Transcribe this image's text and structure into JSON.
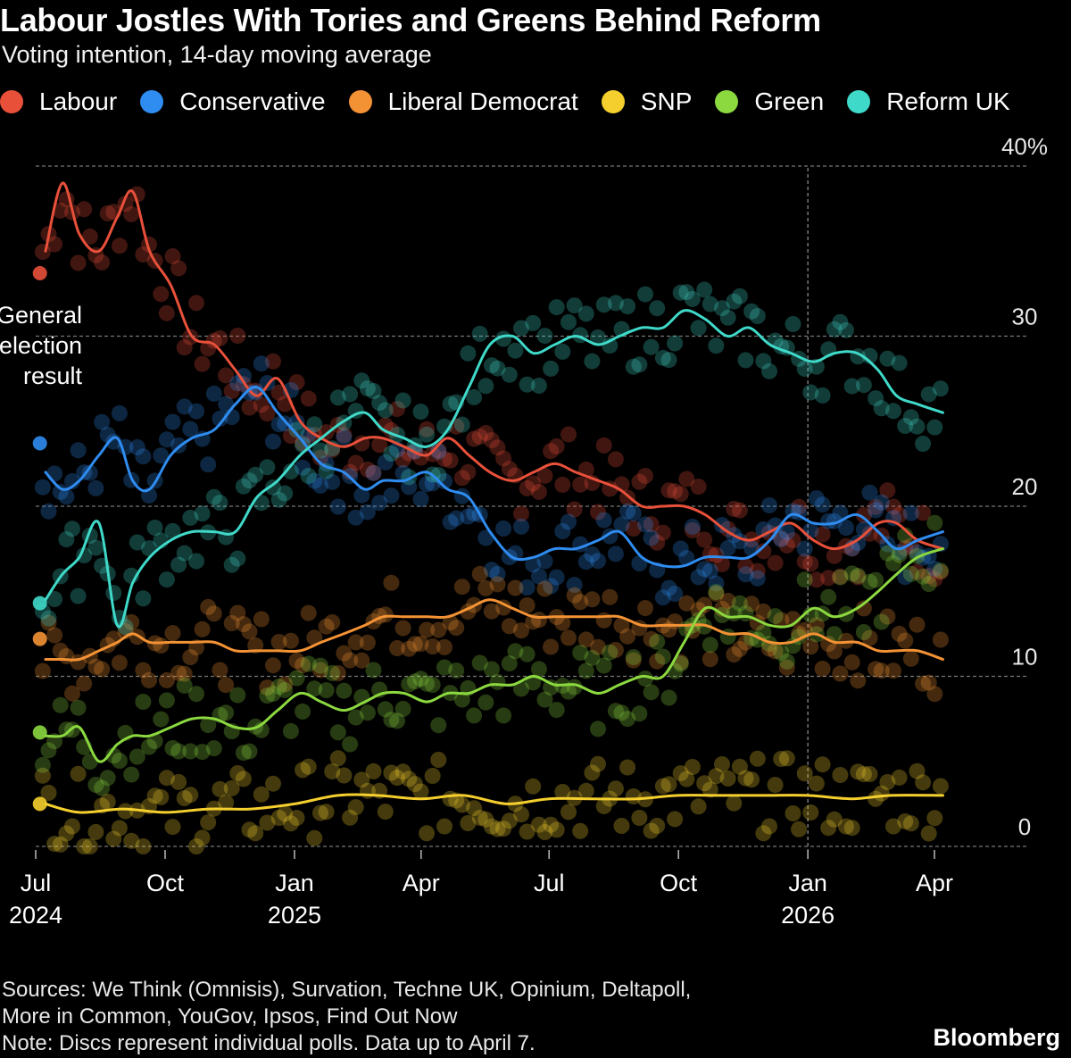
{
  "title": "Labour Jostles With Tories and Greens Behind Reform",
  "subtitle": "Voting intention, 14-day moving average",
  "legend": [
    {
      "name": "Labour",
      "color": "#e8503a"
    },
    {
      "name": "Conservative",
      "color": "#2f8cf0"
    },
    {
      "name": "Liberal Democrat",
      "color": "#f39234"
    },
    {
      "name": "SNP",
      "color": "#f5cf2e"
    },
    {
      "name": "Green",
      "color": "#8bd83f"
    },
    {
      "name": "Reform UK",
      "color": "#3fd9c9"
    }
  ],
  "annotation": {
    "line1": "General",
    "line2": "election",
    "line3": "result"
  },
  "footer": {
    "sources_line1": "Sources: We Think (Omnisis), Survation, Techne UK, Opinium, Deltapoll,",
    "sources_line2": "More in Common, YouGov, Ipsos, Find Out Now",
    "note": "Note: Discs represent individual polls. Data up to April 7."
  },
  "brand": "Bloomberg",
  "chart_data": {
    "type": "line",
    "title": "Labour Jostles With Tories and Greens Behind Reform",
    "subtitle": "Voting intention, 14-day moving average",
    "ylim": [
      0,
      40
    ],
    "yticks": [
      {
        "value": 0,
        "label": "0"
      },
      {
        "value": 10,
        "label": "10"
      },
      {
        "value": 20,
        "label": "20"
      },
      {
        "value": 30,
        "label": "30"
      },
      {
        "value": 40,
        "label": "40%"
      }
    ],
    "xlim": [
      "2024-07-04",
      "2026-04-07"
    ],
    "xticks": [
      {
        "date": "2024-07-01",
        "label": "Jul",
        "year": "2024"
      },
      {
        "date": "2024-10-01",
        "label": "Oct",
        "year": ""
      },
      {
        "date": "2025-01-01",
        "label": "Jan",
        "year": "2025"
      },
      {
        "date": "2025-04-01",
        "label": "Apr",
        "year": ""
      },
      {
        "date": "2025-07-01",
        "label": "Jul",
        "year": ""
      },
      {
        "date": "2025-10-01",
        "label": "Oct",
        "year": ""
      },
      {
        "date": "2026-01-01",
        "label": "Jan",
        "year": "2026"
      },
      {
        "date": "2026-04-01",
        "label": "Apr",
        "year": ""
      }
    ],
    "gridlines": true,
    "legend_position": "top",
    "election_marker": {
      "date": "2024-07-04",
      "values": {
        "Labour": 33.7,
        "Conservative": 23.7,
        "Liberal Democrat": 12.2,
        "SNP": 2.5,
        "Green": 6.7,
        "Reform UK": 14.3
      }
    },
    "year_marker": "2026-01-01",
    "series": [
      {
        "name": "Labour",
        "color": "#e8503a",
        "x": [
          "2024-07-08",
          "2024-07-20",
          "2024-08-01",
          "2024-08-15",
          "2024-08-28",
          "2024-09-08",
          "2024-09-20",
          "2024-10-05",
          "2024-10-20",
          "2024-11-05",
          "2024-11-20",
          "2024-12-05",
          "2024-12-20",
          "2025-01-05",
          "2025-01-20",
          "2025-02-05",
          "2025-02-20",
          "2025-03-05",
          "2025-03-20",
          "2025-04-05",
          "2025-04-20",
          "2025-05-05",
          "2025-05-20",
          "2025-06-05",
          "2025-06-20",
          "2025-07-05",
          "2025-07-20",
          "2025-08-05",
          "2025-08-20",
          "2025-09-05",
          "2025-09-20",
          "2025-10-05",
          "2025-10-20",
          "2025-11-05",
          "2025-11-20",
          "2025-12-05",
          "2025-12-20",
          "2026-01-05",
          "2026-01-20",
          "2026-02-05",
          "2026-02-20",
          "2026-03-05",
          "2026-03-20",
          "2026-04-07"
        ],
        "values": [
          35,
          39,
          36,
          35,
          37,
          38.5,
          35,
          33,
          30,
          29.5,
          28,
          26.5,
          27.5,
          25,
          24,
          23.5,
          24,
          24,
          23.5,
          23,
          24,
          23,
          22,
          21.5,
          22,
          22.5,
          22,
          21.5,
          21,
          20,
          20,
          20,
          19.5,
          18.5,
          18,
          18.5,
          19,
          18,
          17.5,
          18,
          19,
          19,
          18,
          17.5
        ]
      },
      {
        "name": "Conservative",
        "color": "#2f8cf0",
        "x": [
          "2024-07-08",
          "2024-07-20",
          "2024-08-01",
          "2024-08-15",
          "2024-08-28",
          "2024-09-08",
          "2024-09-20",
          "2024-10-05",
          "2024-10-20",
          "2024-11-05",
          "2024-11-20",
          "2024-12-05",
          "2024-12-20",
          "2025-01-05",
          "2025-01-20",
          "2025-02-05",
          "2025-02-20",
          "2025-03-05",
          "2025-03-20",
          "2025-04-05",
          "2025-04-20",
          "2025-05-05",
          "2025-05-20",
          "2025-06-05",
          "2025-06-20",
          "2025-07-05",
          "2025-07-20",
          "2025-08-05",
          "2025-08-20",
          "2025-09-05",
          "2025-09-20",
          "2025-10-05",
          "2025-10-20",
          "2025-11-05",
          "2025-11-20",
          "2025-12-05",
          "2025-12-20",
          "2026-01-05",
          "2026-01-20",
          "2026-02-05",
          "2026-02-20",
          "2026-03-05",
          "2026-03-20",
          "2026-04-07"
        ],
        "values": [
          22,
          21,
          21.5,
          23,
          24,
          21.5,
          21,
          23,
          24,
          24.5,
          26,
          27,
          25.5,
          24,
          22.5,
          22,
          21,
          21.5,
          21.5,
          22,
          21,
          20.5,
          18.5,
          17,
          17,
          17.5,
          17.5,
          18,
          18.5,
          17,
          16.5,
          16.5,
          17,
          17,
          17,
          18,
          19.5,
          19,
          19,
          19.5,
          18.5,
          17.5,
          18,
          18.5
        ]
      },
      {
        "name": "Liberal Democrat",
        "color": "#f39234",
        "x": [
          "2024-07-08",
          "2024-07-20",
          "2024-08-01",
          "2024-08-15",
          "2024-08-28",
          "2024-09-08",
          "2024-09-20",
          "2024-10-05",
          "2024-10-20",
          "2024-11-05",
          "2024-11-20",
          "2024-12-05",
          "2024-12-20",
          "2025-01-05",
          "2025-01-20",
          "2025-02-05",
          "2025-02-20",
          "2025-03-05",
          "2025-03-20",
          "2025-04-05",
          "2025-04-20",
          "2025-05-05",
          "2025-05-20",
          "2025-06-05",
          "2025-06-20",
          "2025-07-05",
          "2025-07-20",
          "2025-08-05",
          "2025-08-20",
          "2025-09-05",
          "2025-09-20",
          "2025-10-05",
          "2025-10-20",
          "2025-11-05",
          "2025-11-20",
          "2025-12-05",
          "2025-12-20",
          "2026-01-05",
          "2026-01-20",
          "2026-02-05",
          "2026-02-20",
          "2026-03-05",
          "2026-03-20",
          "2026-04-07"
        ],
        "values": [
          11,
          11,
          11,
          11.5,
          12,
          12.5,
          12,
          12,
          12,
          12,
          11.5,
          11.5,
          11.5,
          11.5,
          12,
          12.5,
          13,
          13.5,
          13.5,
          13.5,
          13.5,
          14,
          14.5,
          14,
          13.5,
          13.5,
          13.5,
          13.5,
          13.5,
          13,
          13,
          13,
          13,
          12.5,
          12.5,
          12,
          12,
          12.5,
          12,
          12,
          11.5,
          11.5,
          11.5,
          11
        ]
      },
      {
        "name": "SNP",
        "color": "#f5cf2e",
        "x": [
          "2024-07-08",
          "2024-08-01",
          "2024-09-01",
          "2024-10-01",
          "2024-11-01",
          "2024-12-01",
          "2025-01-01",
          "2025-02-01",
          "2025-03-01",
          "2025-04-01",
          "2025-05-01",
          "2025-06-01",
          "2025-07-01",
          "2025-08-01",
          "2025-09-01",
          "2025-10-01",
          "2025-11-01",
          "2025-12-01",
          "2026-01-01",
          "2026-02-01",
          "2026-03-01",
          "2026-04-07"
        ],
        "values": [
          2.5,
          2,
          2.2,
          2,
          2.2,
          2.2,
          2.5,
          3,
          3,
          2.8,
          3,
          2.5,
          2.8,
          2.8,
          2.8,
          3,
          3,
          3,
          3,
          2.8,
          3,
          3
        ]
      },
      {
        "name": "Green",
        "color": "#8bd83f",
        "x": [
          "2024-07-08",
          "2024-07-20",
          "2024-08-01",
          "2024-08-15",
          "2024-08-28",
          "2024-09-08",
          "2024-09-20",
          "2024-10-05",
          "2024-10-20",
          "2024-11-05",
          "2024-11-20",
          "2024-12-05",
          "2024-12-20",
          "2025-01-05",
          "2025-01-20",
          "2025-02-05",
          "2025-02-20",
          "2025-03-05",
          "2025-03-20",
          "2025-04-05",
          "2025-04-20",
          "2025-05-05",
          "2025-05-20",
          "2025-06-05",
          "2025-06-20",
          "2025-07-05",
          "2025-07-20",
          "2025-08-05",
          "2025-08-20",
          "2025-09-05",
          "2025-09-20",
          "2025-10-05",
          "2025-10-20",
          "2025-11-05",
          "2025-11-20",
          "2025-12-05",
          "2025-12-20",
          "2026-01-05",
          "2026-01-20",
          "2026-02-05",
          "2026-02-20",
          "2026-03-05",
          "2026-03-20",
          "2026-04-07"
        ],
        "values": [
          6.5,
          6.5,
          7,
          5,
          6,
          6.5,
          6.5,
          7,
          7.5,
          7.5,
          7,
          7,
          8,
          9,
          8.5,
          8,
          8.5,
          9,
          9,
          8.5,
          9,
          9,
          9.5,
          9.5,
          10,
          9.5,
          9.5,
          9,
          9.5,
          10,
          10,
          12,
          14,
          13.5,
          13.5,
          13,
          13,
          14,
          13.5,
          14,
          15,
          16,
          17,
          17.5
        ]
      },
      {
        "name": "Reform UK",
        "color": "#3fd9c9",
        "x": [
          "2024-07-08",
          "2024-07-20",
          "2024-08-01",
          "2024-08-15",
          "2024-08-28",
          "2024-09-08",
          "2024-09-20",
          "2024-10-05",
          "2024-10-20",
          "2024-11-05",
          "2024-11-20",
          "2024-12-05",
          "2024-12-20",
          "2025-01-05",
          "2025-01-20",
          "2025-02-05",
          "2025-02-20",
          "2025-03-05",
          "2025-03-20",
          "2025-04-05",
          "2025-04-20",
          "2025-05-05",
          "2025-05-20",
          "2025-06-05",
          "2025-06-20",
          "2025-07-05",
          "2025-07-20",
          "2025-08-05",
          "2025-08-20",
          "2025-09-05",
          "2025-09-20",
          "2025-10-05",
          "2025-10-20",
          "2025-11-05",
          "2025-11-20",
          "2025-12-05",
          "2025-12-20",
          "2026-01-05",
          "2026-01-20",
          "2026-02-05",
          "2026-02-20",
          "2026-03-05",
          "2026-03-20",
          "2026-04-07"
        ],
        "values": [
          14.5,
          16,
          17,
          19,
          13,
          15.5,
          17,
          18,
          18.5,
          18.5,
          18.5,
          20.5,
          21.5,
          23,
          24,
          25,
          25.5,
          24.5,
          24,
          23.5,
          24.5,
          27,
          29.5,
          30,
          29,
          29.5,
          30,
          29.5,
          30,
          30.5,
          30.5,
          31.5,
          31,
          30,
          30.5,
          29.5,
          29,
          28.5,
          29,
          29,
          28,
          26.5,
          26,
          25.5
        ]
      }
    ]
  }
}
